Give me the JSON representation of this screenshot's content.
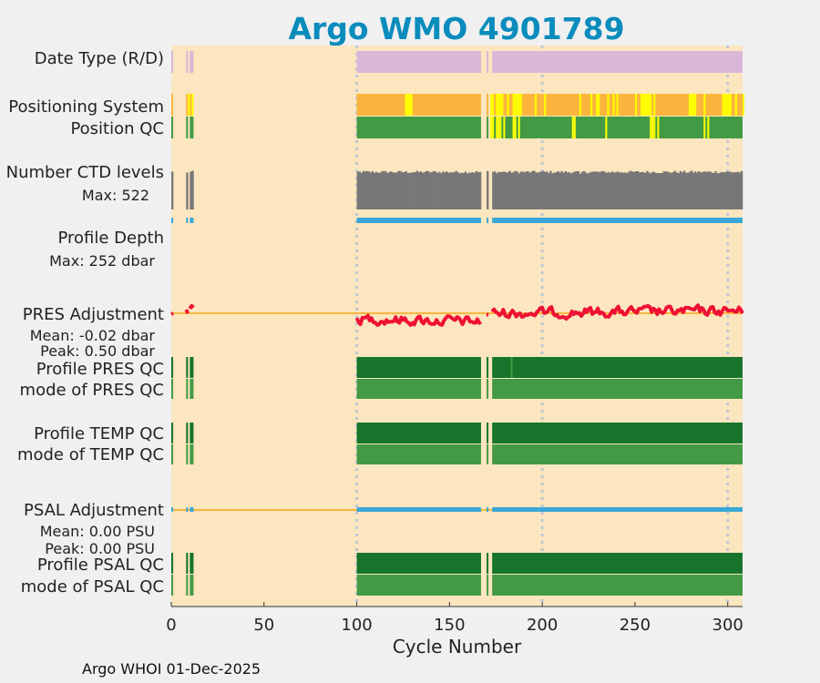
{
  "title": "Argo WMO 4901789",
  "footer": "Argo WHOI 01-Dec-2025",
  "colors": {
    "background": "#fbe6bf",
    "title": "#0a8cbd",
    "lavender": "#dab6d9",
    "orange": "#fbb53e",
    "yellow": "#ffff00",
    "green_light": "#439a44",
    "green_dark": "#16752a",
    "gray": "#777777",
    "blue": "#3ba7d6",
    "red": "#ee1133",
    "grid": "#bfc6d6"
  },
  "chart_data": {
    "type": "heatmap",
    "title": "Argo WMO 4901789",
    "xlabel": "Cycle Number",
    "xlim": [
      0,
      308
    ],
    "xticks": [
      0,
      50,
      100,
      150,
      200,
      250,
      300
    ],
    "xtick_labels": [
      "0",
      "50",
      "100",
      "150",
      "200",
      "250",
      "300"
    ],
    "vgrid": [
      100,
      200,
      300
    ],
    "cycle_segments": [
      [
        0,
        1
      ],
      [
        8,
        9
      ],
      [
        10,
        12
      ],
      [
        100,
        167
      ],
      [
        170,
        171
      ],
      [
        173,
        308
      ]
    ],
    "row_labels": {
      "date_type": "Date Type (R/D)",
      "positioning_system": "Positioning System",
      "position_qc": "Position QC",
      "number_ctd_levels": "Number CTD levels",
      "max_ctd": "Max: 522",
      "profile_depth": "Profile Depth",
      "max_depth": "Max:  252 dbar",
      "pres_adjustment": "PRES Adjustment",
      "pres_mean": "Mean: -0.02 dbar",
      "pres_peak": "Peak: 0.50 dbar",
      "profile_pres_qc": "Profile PRES QC",
      "mode_pres_qc": "mode of PRES QC",
      "profile_temp_qc": "Profile TEMP QC",
      "mode_temp_qc": "mode of TEMP QC",
      "psal_adjustment": "PSAL Adjustment",
      "psal_mean": "Mean: 0.00 PSU",
      "psal_peak": "Peak: 0.00 PSU",
      "profile_psal_qc": "Profile PSAL QC",
      "mode_psal_qc": "mode of PSAL QC"
    },
    "positioning_yellow_cycles": [
      9,
      11,
      126,
      127,
      128,
      129,
      172,
      173,
      175,
      176,
      177,
      178,
      181,
      184,
      185,
      186,
      187,
      188,
      196,
      201,
      220,
      226,
      229,
      230,
      235,
      238,
      238,
      240,
      250,
      253,
      254,
      255,
      256,
      257,
      258,
      260,
      279,
      280,
      281,
      282,
      287,
      297,
      298,
      299,
      300,
      301,
      304,
      308
    ],
    "position_qc_yellow_cycles": [
      172,
      173,
      175,
      176,
      177,
      179,
      184,
      185,
      187,
      216,
      217,
      234,
      258,
      259,
      260,
      262,
      287,
      289
    ],
    "pres_qc_outlier_cycles": [
      183
    ],
    "ctd_max": 522,
    "ctd_baseline": 470,
    "pres_mean_dbar": -0.02,
    "pres_peak_dbar": 0.5,
    "psal_mean_psu": 0.0,
    "psal_peak_psu": 0.0,
    "profile_depth_max_dbar": 252
  }
}
